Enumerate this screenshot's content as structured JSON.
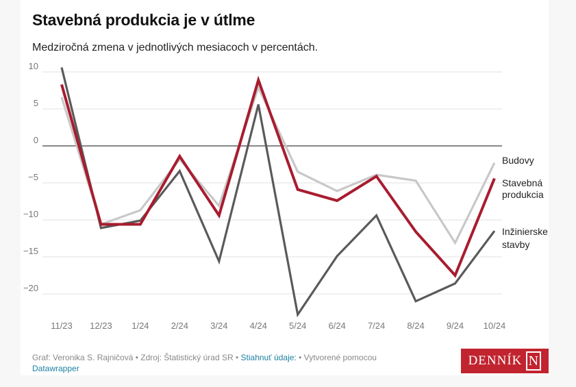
{
  "title": "Stavebná produkcia je v útlme",
  "subtitle": "Medziročná zmena v jednotlivých mesiacoch v percentách.",
  "footer": {
    "credit": "Graf: Veronika S. Rajničová • Zdroj: Štatistický úrad SR • ",
    "download_link": "Stiahnuť údaje:",
    "made_with": " • Vytvorené pomocou ",
    "datawrapper_link": "Datawrapper"
  },
  "logo": {
    "text": "DENNÍK",
    "mark": "N"
  },
  "chart_data": {
    "type": "line",
    "title": "Stavebná produkcia je v útlme",
    "xlabel": "",
    "ylabel": "",
    "categories": [
      "11/23",
      "12/23",
      "1/24",
      "2/24",
      "3/24",
      "4/24",
      "5/24",
      "6/24",
      "7/24",
      "8/24",
      "9/24",
      "10/24"
    ],
    "yticks": [
      10,
      5,
      0,
      -5,
      -10,
      -15,
      -20
    ],
    "ylim": [
      -23.5,
      11
    ],
    "grid": true,
    "legend": "direct-labels-right",
    "series": [
      {
        "name": "Budovy",
        "color": "#c8c8c8",
        "values": [
          6.6,
          -10.6,
          -8.7,
          -1.8,
          -8.1,
          7.9,
          -3.5,
          -6.1,
          -3.9,
          -4.7,
          -13.1,
          -2.3
        ]
      },
      {
        "name": "Inžinierske stavby",
        "color": "#5a5a5a",
        "values": [
          10.6,
          -11.1,
          -10.1,
          -3.4,
          -15.6,
          5.6,
          -22.8,
          -14.9,
          -9.4,
          -21.0,
          -18.6,
          -11.5
        ]
      },
      {
        "name": "Stavebná produkcia",
        "color": "#a81c2f",
        "values": [
          8.3,
          -10.6,
          -10.6,
          -1.4,
          -9.4,
          8.9,
          -5.9,
          -7.4,
          -4.1,
          -11.6,
          -17.5,
          -4.4
        ]
      }
    ],
    "label_lines": {
      "Budovy": [
        "Budovy"
      ],
      "Inžinierske stavby": [
        "Inžinierske",
        "stavby"
      ],
      "Stavebná produkcia": [
        "Stavebná",
        "produkcia"
      ]
    }
  }
}
